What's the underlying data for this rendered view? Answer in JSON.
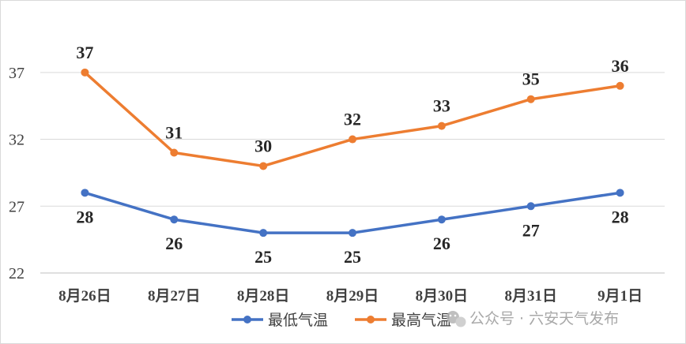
{
  "chart_data": {
    "type": "line",
    "title": "",
    "xlabel": "",
    "ylabel": "",
    "categories": [
      "8月26日",
      "8月27日",
      "8月28日",
      "8月29日",
      "8月30日",
      "8月31日",
      "9月1日"
    ],
    "ylim": [
      22,
      40
    ],
    "yticks": [
      22,
      27,
      32,
      37
    ],
    "grid": "horizontal",
    "legend_position": "bottom-right",
    "data_labels": true,
    "series": [
      {
        "name": "最低气温",
        "color": "#4472C4",
        "values": [
          28,
          26,
          25,
          25,
          26,
          27,
          28
        ],
        "label_position": "below"
      },
      {
        "name": "最高气温",
        "color": "#ED7D31",
        "values": [
          37,
          31,
          30,
          32,
          33,
          35,
          36
        ],
        "label_position": "above"
      }
    ]
  },
  "watermark": {
    "text": "公众号 · 六安天气发布",
    "icon": "wechat-icon"
  }
}
